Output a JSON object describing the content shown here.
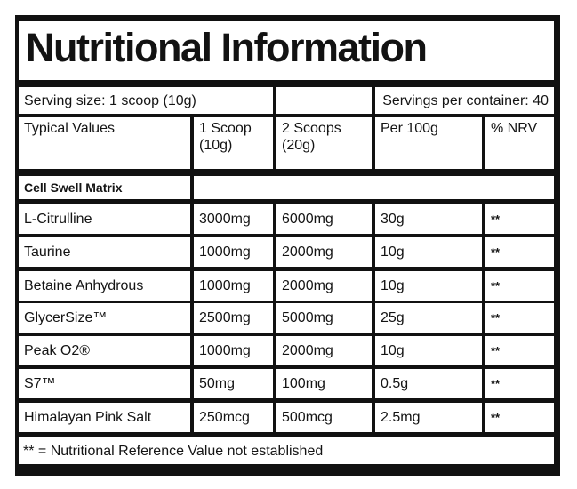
{
  "title": "Nutritional Information",
  "serving_size": "Serving size: 1 scoop (10g)",
  "servings_per_container": "Servings per container: 40",
  "headers": {
    "typical": "Typical Values",
    "one_scoop": "1 Scoop (10g)",
    "two_scoops": "2 Scoops (20g)",
    "per100": "Per 100g",
    "nrv": "% NRV"
  },
  "section": "Cell Swell Matrix",
  "rows": [
    {
      "name": "L-Citrulline",
      "one": "3000mg",
      "two": "6000mg",
      "per100": "30g",
      "nrv": "**"
    },
    {
      "name": "Taurine",
      "one": "1000mg",
      "two": "2000mg",
      "per100": "10g",
      "nrv": "**"
    },
    {
      "name": "Betaine Anhydrous",
      "one": "1000mg",
      "two": "2000mg",
      "per100": "10g",
      "nrv": "**"
    },
    {
      "name": "GlycerSize™",
      "one": "2500mg",
      "two": "5000mg",
      "per100": "25g",
      "nrv": "**"
    },
    {
      "name": "Peak O2®",
      "one": "1000mg",
      "two": "2000mg",
      "per100": "10g",
      "nrv": "**"
    },
    {
      "name": "S7™",
      "one": "50mg",
      "two": "100mg",
      "per100": "0.5g",
      "nrv": "**"
    },
    {
      "name": "Himalayan Pink Salt",
      "one": "250mcg",
      "two": "500mcg",
      "per100": "2.5mg",
      "nrv": "**"
    }
  ],
  "footnote": "** = Nutritional Reference Value not established"
}
